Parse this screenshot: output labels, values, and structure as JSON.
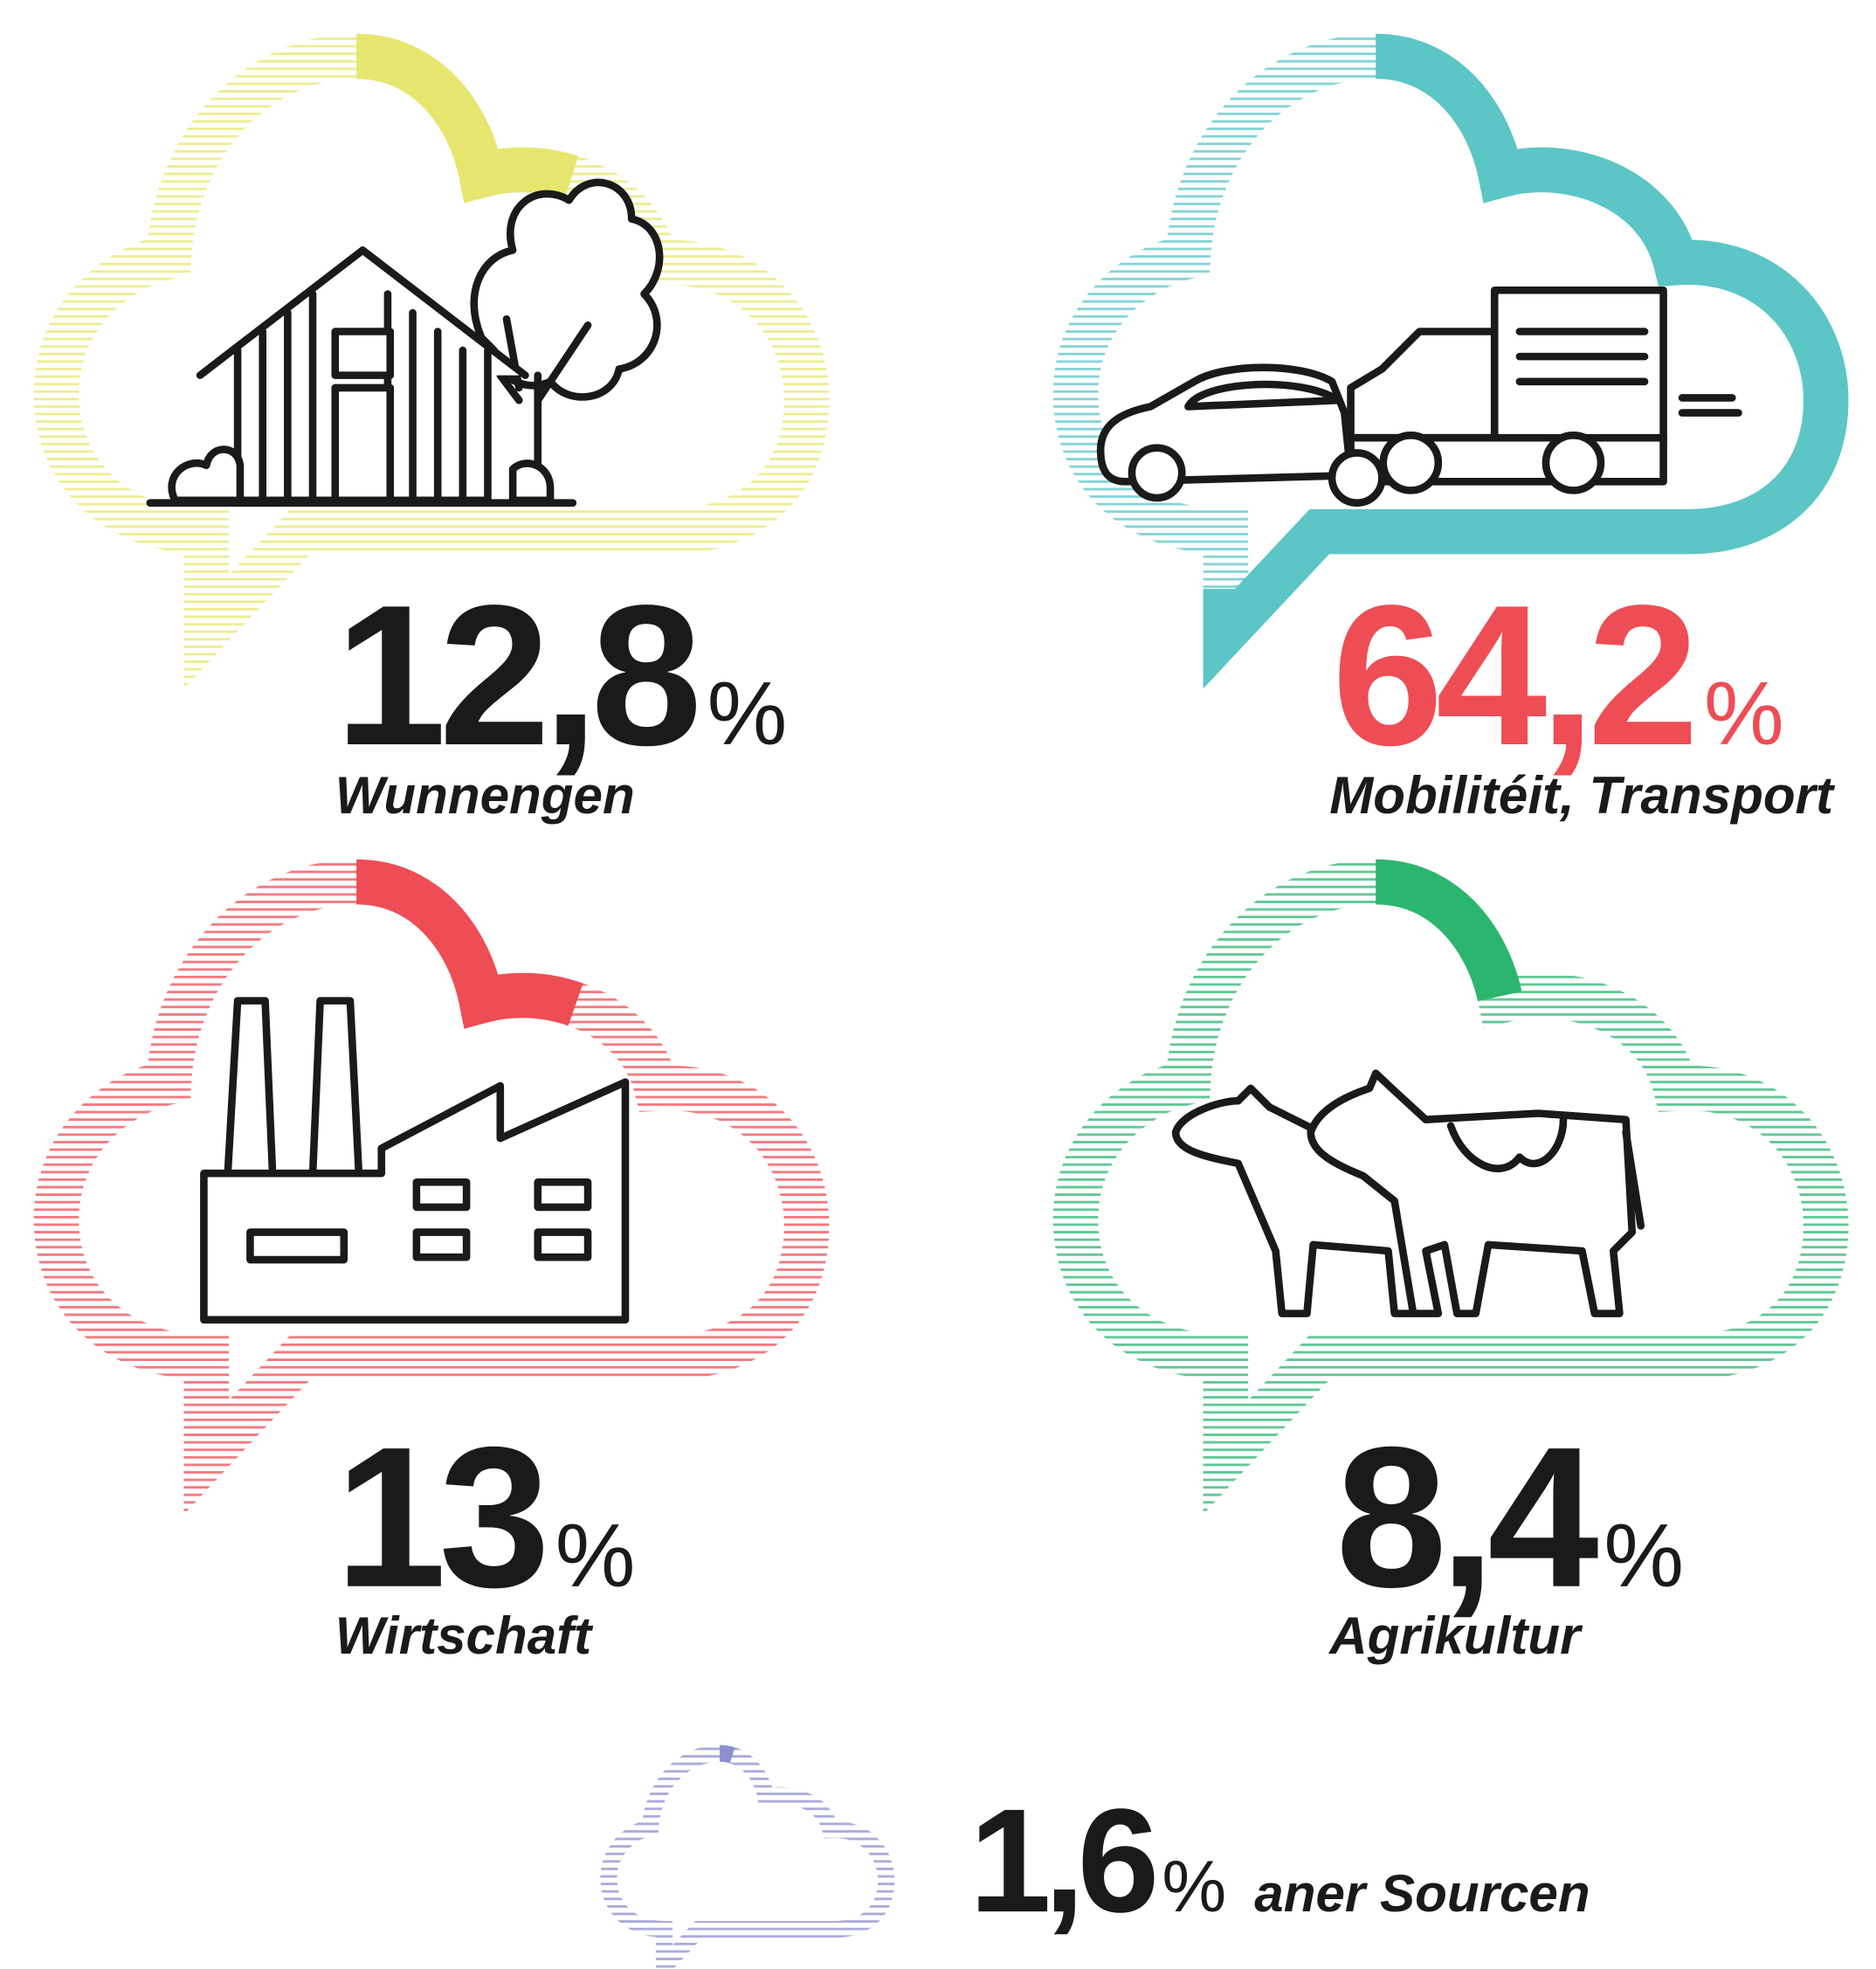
{
  "chart_data": {
    "type": "cloud-share",
    "unit": "%",
    "categories": [
      "Wunnengen",
      "Mobilitéit, Transport",
      "Wirtschaft",
      "Agrikultur",
      "aner Sourcen"
    ],
    "values": [
      12.8,
      64.2,
      13,
      8.4,
      1.6
    ],
    "value_labels": [
      "12,8",
      "64,2",
      "13",
      "8,4",
      "1,6"
    ],
    "colors": [
      "#e6e66f",
      "#5cc5c6",
      "#ee4d55",
      "#2cb56e",
      "#8f8fd0"
    ],
    "text_colors": [
      "#1a1a1a",
      "#ee4d55",
      "#1a1a1a",
      "#1a1a1a",
      "#1a1a1a"
    ]
  }
}
